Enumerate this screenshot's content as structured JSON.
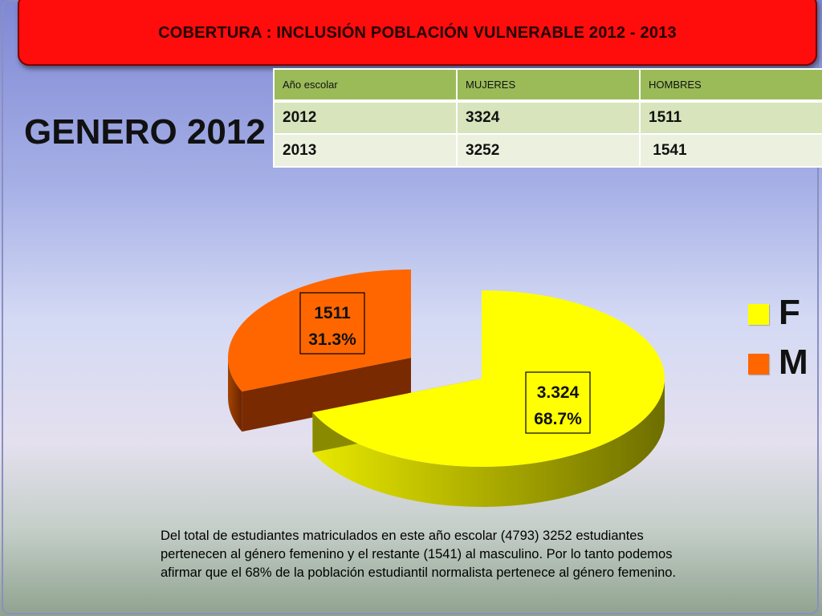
{
  "header": {
    "title": "COBERTURA :  INCLUSIÓN POBLACIÓN VULNERABLE  2012 - 2013"
  },
  "page_title": "GENERO 2012",
  "table": {
    "headers": [
      "Año escolar",
      "MUJERES",
      "HOMBRES"
    ],
    "rows": [
      [
        "2012",
        "3324",
        "1511"
      ],
      [
        "2013",
        "3252",
        " 1541"
      ]
    ]
  },
  "description": "Del total de estudiantes matriculados en este año escolar (4793) 3252 estudiantes pertenecen al género femenino y el restante (1541) al masculino. Por lo tanto podemos afirmar que el 68% de la población estudiantil normalista pertenece al género femenino.",
  "colors": {
    "banner": "#ff0c0c",
    "female": "#ffff00",
    "male": "#ff6600",
    "table_header": "#9bbb59",
    "table_row_1": "#d7e4bc",
    "table_row_2": "#ebf1de"
  },
  "chart_data": {
    "type": "pie",
    "style": "3d-exploded",
    "categories": [
      "F",
      "M"
    ],
    "values": [
      3324,
      1511
    ],
    "percentages": [
      68.7,
      31.3
    ],
    "labels": [
      {
        "value": "3.324",
        "percent": "68.7%"
      },
      {
        "value": "1511",
        "percent": "31.3%"
      }
    ],
    "legend": {
      "position": "right",
      "entries": [
        "F",
        "M"
      ]
    }
  }
}
